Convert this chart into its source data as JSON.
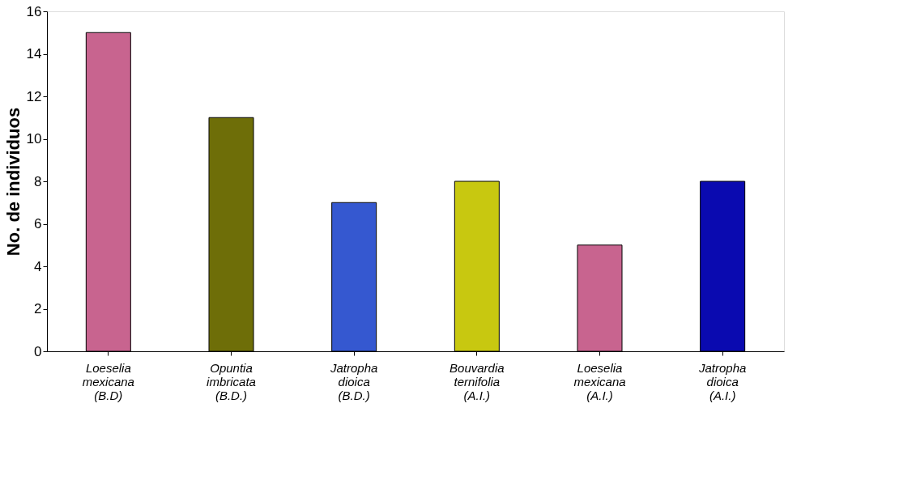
{
  "chart_data": {
    "type": "bar",
    "ylabel": "No. de individuos",
    "categories": [
      "Loeselia mexicana (B.D)",
      "Opuntia imbricata (B.D.)",
      "Jatropha dioica (B.D.)",
      "Bouvardia ternifolia (A.I.)",
      "Loeselia mexicana (A.I.)",
      "Jatropha dioica (A.I.)"
    ],
    "values": [
      15,
      11,
      7,
      8,
      5,
      8
    ],
    "colors": [
      "#c8648f",
      "#6e6e08",
      "#3558d0",
      "#c8c810",
      "#c8648f",
      "#0a0ab0"
    ],
    "ylim": [
      0,
      16
    ],
    "yticks": [
      0,
      2,
      4,
      6,
      8,
      10,
      12,
      14,
      16
    ],
    "grid": false
  }
}
